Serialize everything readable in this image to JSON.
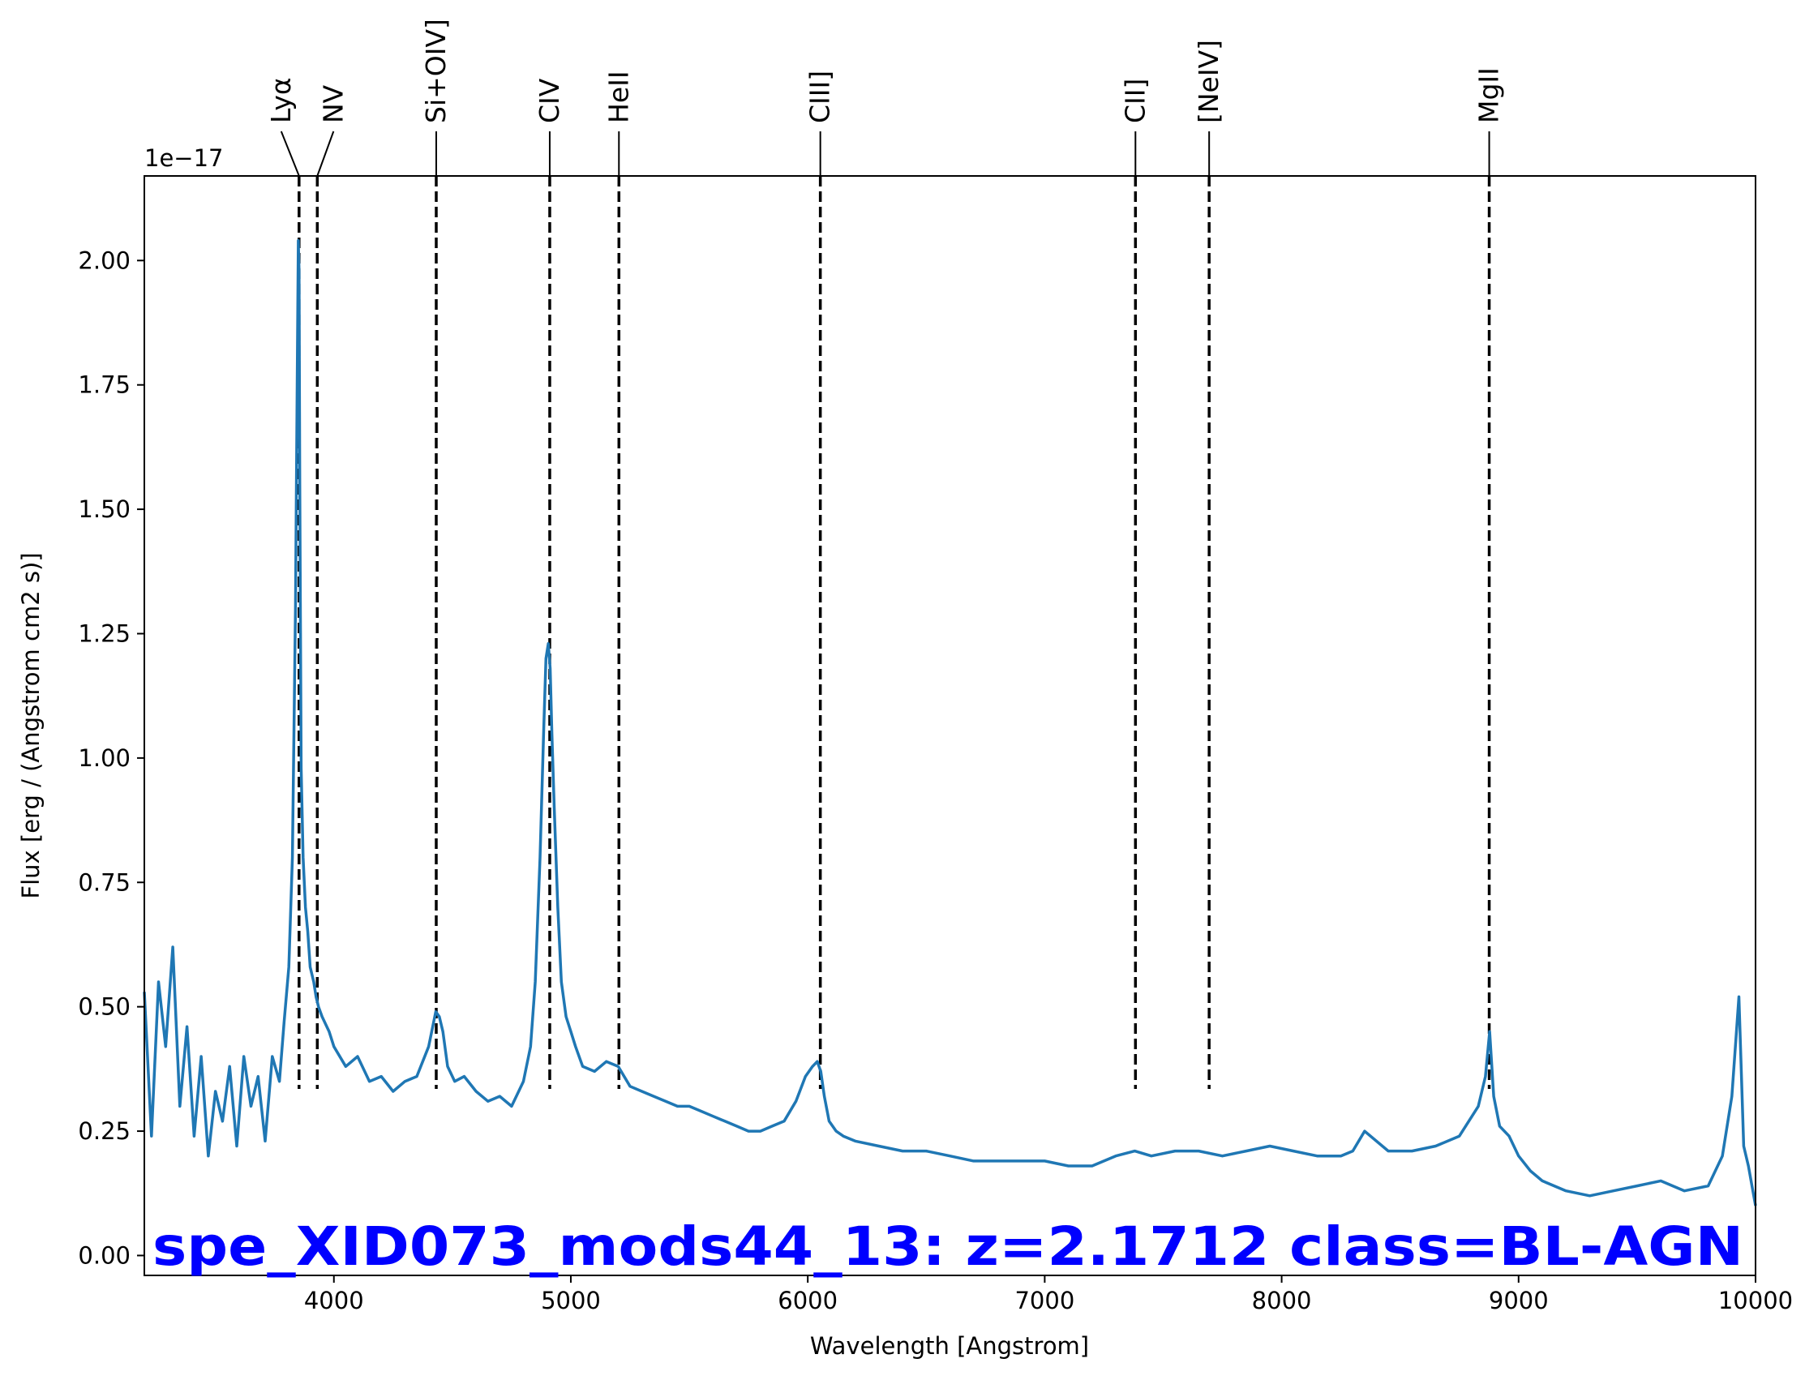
{
  "chart_data": {
    "type": "line",
    "title": "",
    "xlabel": "Wavelength [Angstrom]",
    "ylabel": "Flux [erg / (Angstrom cm2 s)]",
    "y_offset_label": "1e−17",
    "xlim": [
      3200,
      10000
    ],
    "ylim": [
      -0.04,
      2.17
    ],
    "x_ticks": [
      {
        "value": 4000,
        "label": "4000"
      },
      {
        "value": 5000,
        "label": "5000"
      },
      {
        "value": 6000,
        "label": "6000"
      },
      {
        "value": 7000,
        "label": "7000"
      },
      {
        "value": 8000,
        "label": "8000"
      },
      {
        "value": 9000,
        "label": "9000"
      },
      {
        "value": 10000,
        "label": "10000"
      }
    ],
    "y_ticks": [
      {
        "value": 0.0,
        "label": "0.00"
      },
      {
        "value": 0.25,
        "label": "0.25"
      },
      {
        "value": 0.5,
        "label": "0.50"
      },
      {
        "value": 0.75,
        "label": "0.75"
      },
      {
        "value": 1.0,
        "label": "1.00"
      },
      {
        "value": 1.25,
        "label": "1.25"
      },
      {
        "value": 1.5,
        "label": "1.50"
      },
      {
        "value": 1.75,
        "label": "1.75"
      },
      {
        "value": 2.0,
        "label": "2.00"
      }
    ],
    "grid": false,
    "legend": "none",
    "series_color": "#1f77b4",
    "annotation": "spe_XID073_mods44_13: z=2.1712 class=BL-AGN",
    "annotation_color": "#0000ff",
    "emission_lines": [
      {
        "label": "Lyα",
        "wavelength": 3853
      },
      {
        "label": "NV",
        "wavelength": 3930
      },
      {
        "label": "Si+OIV]",
        "wavelength": 4432
      },
      {
        "label": "CIV",
        "wavelength": 4911
      },
      {
        "label": "HeII",
        "wavelength": 5203
      },
      {
        "label": "CIII]",
        "wavelength": 6053
      },
      {
        "label": "CII]",
        "wavelength": 7383
      },
      {
        "label": "[NeIV]",
        "wavelength": 7694
      },
      {
        "label": "MgII",
        "wavelength": 8876
      }
    ],
    "series": [
      {
        "x": [
          3200,
          3230,
          3260,
          3290,
          3320,
          3350,
          3380,
          3410,
          3440,
          3470,
          3500,
          3530,
          3560,
          3590,
          3620,
          3650,
          3680,
          3710,
          3740,
          3770,
          3790,
          3810,
          3825,
          3838,
          3845,
          3850,
          3853,
          3856,
          3862,
          3870,
          3880,
          3890,
          3900,
          3915,
          3925,
          3935,
          3950,
          3980,
          4000,
          4050,
          4100,
          4150,
          4200,
          4250,
          4300,
          4350,
          4400,
          4430,
          4445,
          4460,
          4480,
          4510,
          4550,
          4600,
          4650,
          4700,
          4750,
          4800,
          4830,
          4850,
          4870,
          4885,
          4895,
          4905,
          4913,
          4920,
          4930,
          4945,
          4960,
          4980,
          5000,
          5020,
          5050,
          5100,
          5150,
          5200,
          5250,
          5300,
          5350,
          5400,
          5450,
          5500,
          5550,
          5600,
          5650,
          5700,
          5750,
          5800,
          5850,
          5900,
          5950,
          5990,
          6020,
          6040,
          6055,
          6070,
          6090,
          6120,
          6150,
          6200,
          6300,
          6400,
          6500,
          6600,
          6700,
          6800,
          6900,
          7000,
          7100,
          7200,
          7300,
          7380,
          7450,
          7550,
          7650,
          7750,
          7850,
          7950,
          8050,
          8150,
          8250,
          8300,
          8350,
          8450,
          8550,
          8650,
          8750,
          8830,
          8860,
          8878,
          8895,
          8920,
          8960,
          9000,
          9050,
          9100,
          9200,
          9300,
          9400,
          9500,
          9600,
          9700,
          9800,
          9860,
          9900,
          9930,
          9950,
          9970,
          10000
        ],
        "y": [
          0.53,
          0.24,
          0.55,
          0.42,
          0.62,
          0.3,
          0.46,
          0.24,
          0.4,
          0.2,
          0.33,
          0.27,
          0.38,
          0.22,
          0.4,
          0.3,
          0.36,
          0.23,
          0.4,
          0.35,
          0.47,
          0.58,
          0.8,
          1.3,
          1.75,
          2.04,
          1.98,
          1.55,
          0.98,
          0.8,
          0.7,
          0.65,
          0.58,
          0.55,
          0.52,
          0.5,
          0.48,
          0.45,
          0.42,
          0.38,
          0.4,
          0.35,
          0.36,
          0.33,
          0.35,
          0.36,
          0.42,
          0.49,
          0.48,
          0.45,
          0.38,
          0.35,
          0.36,
          0.33,
          0.31,
          0.32,
          0.3,
          0.35,
          0.42,
          0.55,
          0.8,
          1.05,
          1.2,
          1.23,
          1.18,
          1.05,
          0.9,
          0.7,
          0.55,
          0.48,
          0.45,
          0.42,
          0.38,
          0.37,
          0.39,
          0.38,
          0.34,
          0.33,
          0.32,
          0.31,
          0.3,
          0.3,
          0.29,
          0.28,
          0.27,
          0.26,
          0.25,
          0.25,
          0.26,
          0.27,
          0.31,
          0.36,
          0.38,
          0.39,
          0.37,
          0.32,
          0.27,
          0.25,
          0.24,
          0.23,
          0.22,
          0.21,
          0.21,
          0.2,
          0.19,
          0.19,
          0.19,
          0.19,
          0.18,
          0.18,
          0.2,
          0.21,
          0.2,
          0.21,
          0.21,
          0.2,
          0.21,
          0.22,
          0.21,
          0.2,
          0.2,
          0.21,
          0.25,
          0.21,
          0.21,
          0.22,
          0.24,
          0.3,
          0.36,
          0.45,
          0.32,
          0.26,
          0.24,
          0.2,
          0.17,
          0.15,
          0.13,
          0.12,
          0.13,
          0.14,
          0.15,
          0.13,
          0.14,
          0.2,
          0.32,
          0.52,
          0.22,
          0.18,
          0.1
        ]
      }
    ]
  }
}
